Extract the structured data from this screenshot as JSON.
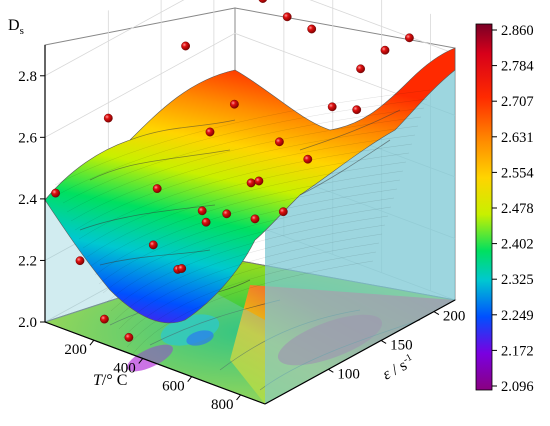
{
  "chart_data": {
    "type": "surface3d",
    "z_title": "Ds",
    "z_title_main": "D",
    "z_title_sub": "s",
    "zlim": [
      2.0,
      2.9
    ],
    "z_ticks": [
      "2.0",
      "2.2",
      "2.4",
      "2.6",
      "2.8"
    ],
    "x_title": "T/° C",
    "x_title_var": "T",
    "x_title_unit": "/° C",
    "x_ticks": [
      "200",
      "400",
      "600",
      "800"
    ],
    "xlim": [
      0,
      900
    ],
    "y_title": "ε / s-1",
    "y_title_var": "ε",
    "y_title_unit": " / s",
    "y_title_sup": "-1",
    "y_ticks": [
      "100",
      "150",
      "200"
    ],
    "ylim": [
      40,
      220
    ],
    "colorbar": {
      "ticks": [
        "2.860",
        "2.784",
        "2.707",
        "2.631",
        "2.554",
        "2.478",
        "2.402",
        "2.325",
        "2.249",
        "2.172",
        "2.096"
      ],
      "range": [
        2.096,
        2.86
      ],
      "colors": [
        "#7a0026",
        "#d7001a",
        "#ff2a00",
        "#ff8c00",
        "#ffd400",
        "#c8f000",
        "#00e060",
        "#00c8d0",
        "#0050ff",
        "#7a00e0",
        "#8a0080"
      ]
    },
    "data_points": [
      {
        "T": 0,
        "e": 50,
        "D": 2.4
      },
      {
        "T": 100,
        "e": 50,
        "D": 2.21
      },
      {
        "T": 200,
        "e": 50,
        "D": 2.05
      },
      {
        "T": 300,
        "e": 50,
        "D": 2.02
      },
      {
        "T": 400,
        "e": 50,
        "D": 2.35
      },
      {
        "T": 500,
        "e": 50,
        "D": 2.3
      },
      {
        "T": 600,
        "e": 50,
        "D": 2.52
      },
      {
        "T": 700,
        "e": 50,
        "D": 2.54
      },
      {
        "T": 800,
        "e": 50,
        "D": 2.67
      },
      {
        "T": 0,
        "e": 100,
        "D": 2.55
      },
      {
        "T": 200,
        "e": 100,
        "D": 2.38
      },
      {
        "T": 300,
        "e": 100,
        "D": 2.15
      },
      {
        "T": 400,
        "e": 100,
        "D": 2.33
      },
      {
        "T": 600,
        "e": 100,
        "D": 2.4
      },
      {
        "T": 700,
        "e": 100,
        "D": 2.68
      },
      {
        "T": 100,
        "e": 150,
        "D": 2.72
      },
      {
        "T": 200,
        "e": 150,
        "D": 2.47
      },
      {
        "T": 300,
        "e": 150,
        "D": 2.59
      },
      {
        "T": 400,
        "e": 150,
        "D": 2.37
      },
      {
        "T": 500,
        "e": 150,
        "D": 2.3
      },
      {
        "T": 600,
        "e": 150,
        "D": 2.5
      },
      {
        "T": 700,
        "e": 150,
        "D": 2.7
      },
      {
        "T": 800,
        "e": 150,
        "D": 2.72
      },
      {
        "T": 200,
        "e": 200,
        "D": 2.81
      },
      {
        "T": 300,
        "e": 200,
        "D": 2.78
      },
      {
        "T": 400,
        "e": 200,
        "D": 2.77
      },
      {
        "T": 600,
        "e": 200,
        "D": 2.7
      },
      {
        "T": 700,
        "e": 200,
        "D": 2.79
      },
      {
        "T": 800,
        "e": 200,
        "D": 2.86
      }
    ]
  }
}
